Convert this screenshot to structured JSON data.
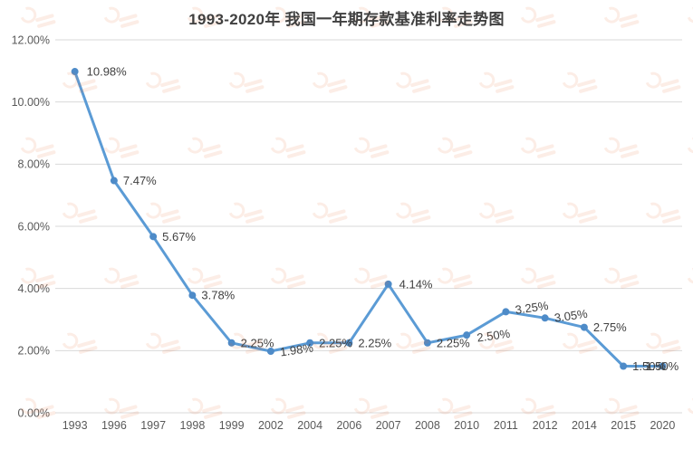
{
  "title": "1993-2020年 我国一年期存款基准利率走势图",
  "chart_data": {
    "type": "line",
    "title": "1993-2020年 我国一年期存款基准利率走势图",
    "categories": [
      "1993",
      "1996",
      "1997",
      "1998",
      "1999",
      "2002",
      "2004",
      "2006",
      "2007",
      "2008",
      "2010",
      "2011",
      "2012",
      "2014",
      "2015",
      "2020"
    ],
    "values": [
      10.98,
      7.47,
      5.67,
      3.78,
      2.25,
      1.98,
      2.25,
      2.25,
      4.14,
      2.25,
      2.5,
      3.25,
      3.05,
      2.75,
      1.5,
      1.5
    ],
    "point_labels": [
      "10.98%",
      "7.47%",
      "5.67%",
      "3.78%",
      "2.25%",
      "1.98%",
      "2.25%",
      "2.25%",
      "4.14%",
      "2.25%",
      "2.50%",
      "3.25%",
      "3.05%",
      "2.75%",
      "1.50%",
      "1.50%"
    ],
    "y_ticks": [
      {
        "label": "0.00%",
        "value": 0
      },
      {
        "label": "2.00%",
        "value": 2
      },
      {
        "label": "4.00%",
        "value": 4
      },
      {
        "label": "6.00%",
        "value": 6
      },
      {
        "label": "8.00%",
        "value": 8
      },
      {
        "label": "10.00%",
        "value": 10
      },
      {
        "label": "12.00%",
        "value": 12
      }
    ],
    "ylim": [
      0,
      12
    ],
    "xlabel": "",
    "ylabel": "",
    "grid": true,
    "legend": "none",
    "colors": {
      "line": "#5B9BD5",
      "marker": "#4E8BC8",
      "data_label": "#404040",
      "axis_text": "#595959",
      "gridline": "#D9D9D9",
      "title": "#404040",
      "watermark": "#E8703A",
      "background": "#FFFFFF"
    }
  }
}
